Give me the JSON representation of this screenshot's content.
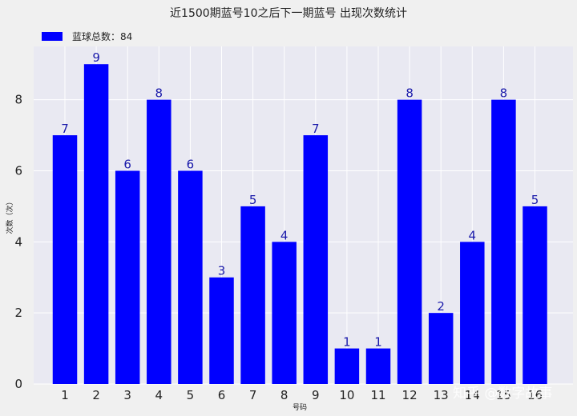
{
  "chart_data": {
    "type": "bar",
    "title": "近1500期蓝号10之后下一期蓝号 出现次数统计",
    "xlabel": "号码",
    "ylabel": "次数（次）",
    "categories": [
      "1",
      "2",
      "3",
      "4",
      "5",
      "6",
      "7",
      "8",
      "9",
      "10",
      "11",
      "12",
      "13",
      "14",
      "15",
      "16"
    ],
    "series": [
      {
        "name": "蓝球总数：84",
        "values": [
          7,
          9,
          6,
          8,
          6,
          3,
          5,
          4,
          7,
          1,
          1,
          8,
          2,
          4,
          8,
          5
        ]
      }
    ],
    "ylim": [
      0,
      9.5
    ],
    "yticks": [
      0,
      2,
      4,
      6,
      8
    ],
    "grid": true,
    "legend_position": "top-left",
    "bar_color": "#0000ff",
    "label_color": "#1a1aaa",
    "plot_background": "#e9e9f2"
  },
  "watermark": "知乎 @数字故事"
}
